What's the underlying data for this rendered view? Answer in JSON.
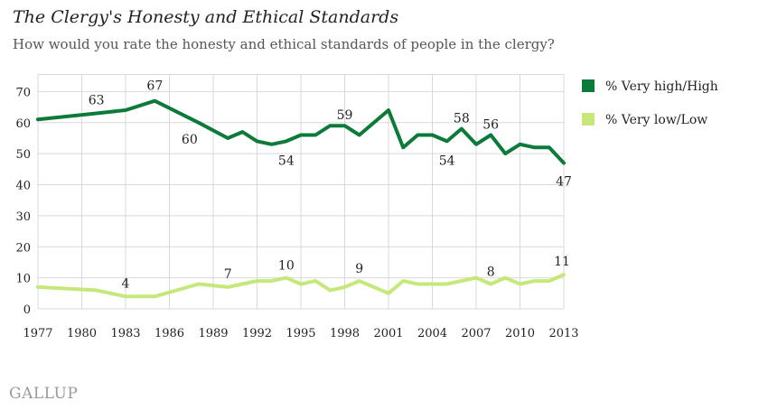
{
  "chart_data": {
    "type": "line",
    "title": "The Clergy's Honesty and Ethical Standards",
    "subtitle": "How would you rate the honesty and ethical standards of people in the clergy?",
    "source": "GALLUP",
    "xlabel": "",
    "ylabel": "",
    "xlim": [
      1977,
      2013
    ],
    "ylim": [
      0,
      70
    ],
    "grid": true,
    "legend_position": "right",
    "x_ticks": [
      1977,
      1980,
      1983,
      1986,
      1989,
      1992,
      1995,
      1998,
      2001,
      2004,
      2007,
      2010,
      2013
    ],
    "y_ticks": [
      0,
      10,
      20,
      30,
      40,
      50,
      60,
      70
    ],
    "series": [
      {
        "name": "% Very high/High",
        "color": "#0c7a39",
        "points": [
          [
            1977,
            61
          ],
          [
            1981,
            63
          ],
          [
            1983,
            64
          ],
          [
            1985,
            67
          ],
          [
            1988,
            60
          ],
          [
            1990,
            55
          ],
          [
            1991,
            57
          ],
          [
            1992,
            54
          ],
          [
            1993,
            53
          ],
          [
            1994,
            54
          ],
          [
            1995,
            56
          ],
          [
            1996,
            56
          ],
          [
            1997,
            59
          ],
          [
            1998,
            59
          ],
          [
            1999,
            56
          ],
          [
            2001,
            64
          ],
          [
            2002,
            52
          ],
          [
            2003,
            56
          ],
          [
            2004,
            56
          ],
          [
            2005,
            54
          ],
          [
            2006,
            58
          ],
          [
            2007,
            53
          ],
          [
            2008,
            56
          ],
          [
            2009,
            50
          ],
          [
            2010,
            53
          ],
          [
            2011,
            52
          ],
          [
            2012,
            52
          ],
          [
            2013,
            47
          ]
        ],
        "annotations": [
          {
            "x": 1981,
            "y": 63,
            "text": "63"
          },
          {
            "x": 1985,
            "y": 67,
            "text": "67"
          },
          {
            "x": 1988,
            "y": 60,
            "text": "60"
          },
          {
            "x": 1994,
            "y": 54,
            "text": "54"
          },
          {
            "x": 1998,
            "y": 59,
            "text": "59"
          },
          {
            "x": 2005,
            "y": 54,
            "text": "54"
          },
          {
            "x": 2006,
            "y": 58,
            "text": "58"
          },
          {
            "x": 2008,
            "y": 56,
            "text": "56"
          },
          {
            "x": 2013,
            "y": 47,
            "text": "47"
          }
        ]
      },
      {
        "name": "% Very low/Low",
        "color": "#c6e87a",
        "points": [
          [
            1977,
            7
          ],
          [
            1981,
            6
          ],
          [
            1983,
            4
          ],
          [
            1985,
            4
          ],
          [
            1988,
            8
          ],
          [
            1990,
            7
          ],
          [
            1991,
            8
          ],
          [
            1992,
            9
          ],
          [
            1993,
            9
          ],
          [
            1994,
            10
          ],
          [
            1995,
            8
          ],
          [
            1996,
            9
          ],
          [
            1997,
            6
          ],
          [
            1998,
            7
          ],
          [
            1999,
            9
          ],
          [
            2001,
            5
          ],
          [
            2002,
            9
          ],
          [
            2003,
            8
          ],
          [
            2004,
            8
          ],
          [
            2005,
            8
          ],
          [
            2006,
            9
          ],
          [
            2007,
            10
          ],
          [
            2008,
            8
          ],
          [
            2009,
            10
          ],
          [
            2010,
            8
          ],
          [
            2011,
            9
          ],
          [
            2012,
            9
          ],
          [
            2013,
            11
          ]
        ],
        "annotations": [
          {
            "x": 1983,
            "y": 4,
            "text": "4"
          },
          {
            "x": 1990,
            "y": 7,
            "text": "7"
          },
          {
            "x": 1994,
            "y": 10,
            "text": "10"
          },
          {
            "x": 1999,
            "y": 9,
            "text": "9"
          },
          {
            "x": 2008,
            "y": 8,
            "text": "8"
          },
          {
            "x": 2013,
            "y": 11,
            "text": "11"
          }
        ]
      }
    ]
  }
}
